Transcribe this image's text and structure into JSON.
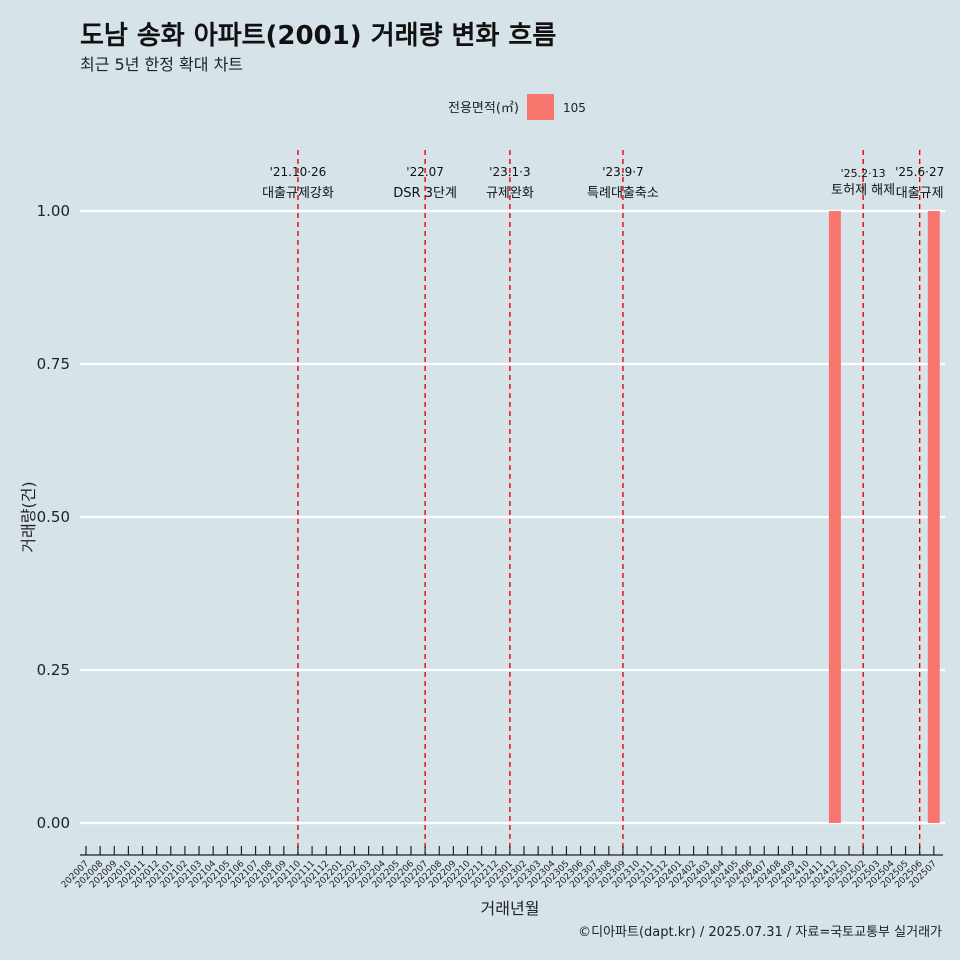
{
  "chart_data": {
    "type": "bar",
    "title": "도남 송화 아파트(2001) 거래량 변화 흐름",
    "subtitle": "최근 5년 한정 확대 차트",
    "xlabel": "거래년월",
    "ylabel": "거래량(건)",
    "ylim": [
      0,
      1
    ],
    "yticks": [
      "0.00",
      "0.25",
      "0.50",
      "0.75",
      "1.00"
    ],
    "ytick_values": [
      0,
      0.25,
      0.5,
      0.75,
      1.0
    ],
    "legend": {
      "title": "전용면적(㎡)",
      "placement": "top-center",
      "entries": [
        {
          "name": "105",
          "color": "#f8766d"
        }
      ]
    },
    "categories": [
      "202007",
      "202008",
      "202009",
      "202010",
      "202011",
      "202012",
      "202101",
      "202102",
      "202103",
      "202104",
      "202105",
      "202106",
      "202107",
      "202108",
      "202109",
      "202110",
      "202111",
      "202112",
      "202201",
      "202202",
      "202203",
      "202204",
      "202205",
      "202206",
      "202207",
      "202208",
      "202209",
      "202210",
      "202211",
      "202212",
      "202301",
      "202302",
      "202303",
      "202304",
      "202305",
      "202306",
      "202307",
      "202308",
      "202309",
      "202310",
      "202311",
      "202312",
      "202401",
      "202402",
      "202403",
      "202404",
      "202405",
      "202406",
      "202407",
      "202408",
      "202409",
      "202410",
      "202411",
      "202412",
      "202501",
      "202502",
      "202503",
      "202504",
      "202505",
      "202506",
      "202507"
    ],
    "series": [
      {
        "name": "105",
        "color": "#f8766d",
        "values": [
          0,
          0,
          0,
          0,
          0,
          0,
          0,
          0,
          0,
          0,
          0,
          0,
          0,
          0,
          0,
          0,
          0,
          0,
          0,
          0,
          0,
          0,
          0,
          0,
          0,
          0,
          0,
          0,
          0,
          0,
          0,
          0,
          0,
          0,
          0,
          0,
          0,
          0,
          0,
          0,
          0,
          0,
          0,
          0,
          0,
          0,
          0,
          0,
          0,
          0,
          0,
          0,
          0,
          1,
          0,
          0,
          0,
          0,
          0,
          0,
          1
        ]
      }
    ],
    "events": [
      {
        "date": "'21.10·26",
        "label": "대출규제강화",
        "x": "202110"
      },
      {
        "date": "'22.07",
        "label": "DSR 3단계",
        "x": "202207"
      },
      {
        "date": "'23.1·3",
        "label": "규제완화",
        "x": "202301"
      },
      {
        "date": "'23.9·7",
        "label": "특례대출축소",
        "x": "202309"
      },
      {
        "date": "'25.2·13",
        "label": "토허제 해제",
        "x": "202502",
        "small": true
      },
      {
        "date": "'25.6·27",
        "label": "대출규제",
        "x": "202506"
      }
    ],
    "grid": true,
    "caption": "©디아파트(dapt.kr) / 2025.07.31 / 자료=국토교통부 실거래가"
  },
  "colors": {
    "background": "#d6e4ea",
    "bar": "#f8766d",
    "event_line": "#e8000b",
    "grid": "#ffffff"
  }
}
